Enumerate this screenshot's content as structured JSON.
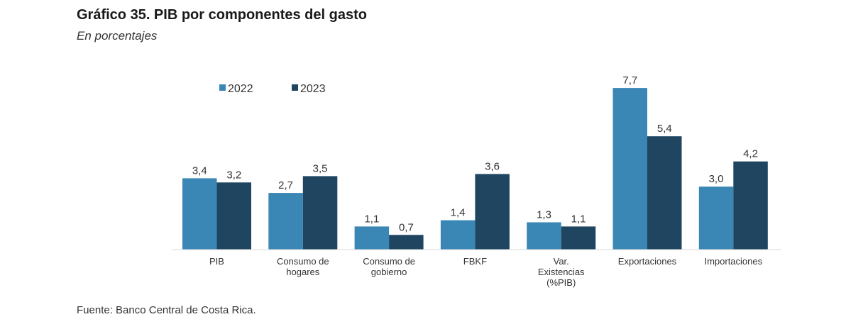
{
  "header": {
    "title": "Gráfico 35. PIB por componentes del gasto",
    "subtitle": "En porcentajes"
  },
  "footer": {
    "source": "Fuente: Banco Central de Costa Rica."
  },
  "colors": {
    "2022": "#3a87b5",
    "2023": "#1f4560",
    "axis": "#d9d9d9"
  },
  "chart_data": {
    "type": "bar",
    "title": "Gráfico 35. PIB por componentes del gasto",
    "subtitle": "En porcentajes",
    "xlabel": "",
    "ylabel": "",
    "ylim": [
      0,
      8
    ],
    "grid": false,
    "legend_position": "top-left",
    "categories": [
      [
        "PIB"
      ],
      [
        "Consumo de",
        "hogares"
      ],
      [
        "Consumo de",
        "gobierno"
      ],
      [
        "FBKF"
      ],
      [
        "Var.",
        "Existencias",
        "(%PIB)"
      ],
      [
        "Exportaciones"
      ],
      [
        "Importaciones"
      ]
    ],
    "series": [
      {
        "name": "2022",
        "values": [
          3.4,
          2.7,
          1.1,
          1.4,
          1.3,
          7.7,
          3.0
        ],
        "labels": [
          "3,4",
          "2,7",
          "1,1",
          "1,4",
          "1,3",
          "7,7",
          "3,0"
        ]
      },
      {
        "name": "2023",
        "values": [
          3.2,
          3.5,
          0.7,
          3.6,
          1.1,
          5.4,
          4.2
        ],
        "labels": [
          "3,2",
          "3,5",
          "0,7",
          "3,6",
          "1,1",
          "5,4",
          "4,2"
        ]
      }
    ]
  }
}
